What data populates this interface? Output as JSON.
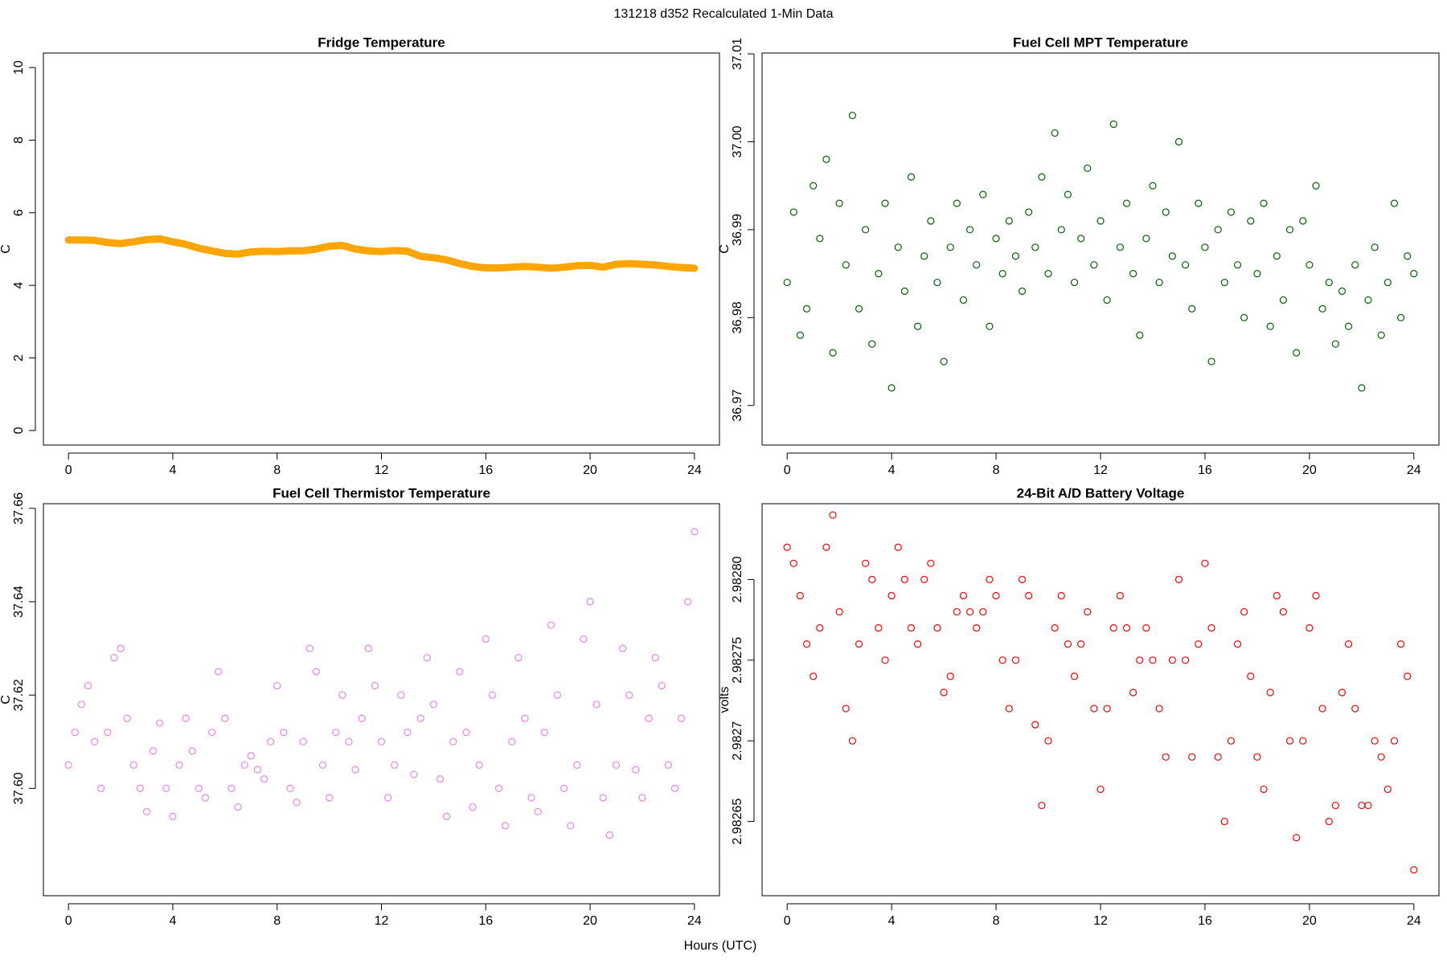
{
  "title": "131218   d352   Recalculated 1-Min Data",
  "xlabel": "Hours (UTC)",
  "chart_data": [
    {
      "type": "line",
      "title": "Fridge Temperature",
      "ylabel": "C",
      "color": "#ffa500",
      "x": [
        0,
        0.5,
        1,
        1.5,
        2,
        2.5,
        3,
        3.5,
        4,
        4.5,
        5,
        5.5,
        6,
        6.5,
        7,
        7.5,
        8,
        8.5,
        9,
        9.5,
        10,
        10.5,
        11,
        11.5,
        12,
        12.5,
        13,
        13.5,
        14,
        14.5,
        15,
        15.5,
        16,
        16.5,
        17,
        17.5,
        18,
        18.5,
        19,
        19.5,
        20,
        20.5,
        21,
        21.5,
        22,
        22.5,
        23,
        23.5,
        24
      ],
      "values": [
        5.25,
        5.25,
        5.24,
        5.18,
        5.15,
        5.2,
        5.26,
        5.28,
        5.2,
        5.13,
        5.02,
        4.95,
        4.88,
        4.86,
        4.92,
        4.94,
        4.93,
        4.95,
        4.95,
        5.0,
        5.08,
        5.1,
        5.0,
        4.95,
        4.93,
        4.96,
        4.94,
        4.8,
        4.76,
        4.7,
        4.6,
        4.52,
        4.48,
        4.48,
        4.5,
        4.52,
        4.5,
        4.47,
        4.5,
        4.54,
        4.55,
        4.5,
        4.58,
        4.6,
        4.58,
        4.56,
        4.52,
        4.49,
        4.47
      ],
      "xlim": [
        -0.96,
        24.96
      ],
      "xticks": [
        0,
        4,
        8,
        12,
        16,
        20,
        24
      ],
      "ylim": [
        -0.4,
        10.4
      ],
      "yticks": [
        0,
        2,
        4,
        6,
        8,
        10
      ]
    },
    {
      "type": "scatter",
      "title": "Fuel Cell MPT Temperature",
      "ylabel": "C",
      "color": "#006400",
      "x": [
        0,
        0.25,
        0.5,
        0.75,
        1,
        1.25,
        1.5,
        1.75,
        2,
        2.25,
        2.5,
        2.75,
        3,
        3.25,
        3.5,
        3.75,
        4,
        4.25,
        4.5,
        4.75,
        5,
        5.25,
        5.5,
        5.75,
        6,
        6.25,
        6.5,
        6.75,
        7,
        7.25,
        7.5,
        7.75,
        8,
        8.25,
        8.5,
        8.75,
        9,
        9.25,
        9.5,
        9.75,
        10,
        10.25,
        10.5,
        10.75,
        11,
        11.25,
        11.5,
        11.75,
        12,
        12.25,
        12.5,
        12.75,
        13,
        13.25,
        13.5,
        13.75,
        14,
        14.25,
        14.5,
        14.75,
        15,
        15.25,
        15.5,
        15.75,
        16,
        16.25,
        16.5,
        16.75,
        17,
        17.25,
        17.5,
        17.75,
        18,
        18.25,
        18.5,
        18.75,
        19,
        19.25,
        19.5,
        19.75,
        20,
        20.25,
        20.5,
        20.75,
        21,
        21.25,
        21.5,
        21.75,
        22,
        22.25,
        22.5,
        22.75,
        23,
        23.25,
        23.5,
        23.75,
        24
      ],
      "values": [
        36.984,
        36.992,
        36.978,
        36.981,
        36.995,
        36.989,
        36.998,
        36.976,
        36.993,
        36.986,
        37.003,
        36.981,
        36.99,
        36.977,
        36.985,
        36.993,
        36.972,
        36.988,
        36.983,
        36.996,
        36.979,
        36.987,
        36.991,
        36.984,
        36.975,
        36.988,
        36.993,
        36.982,
        36.99,
        36.986,
        36.994,
        36.979,
        36.989,
        36.985,
        36.991,
        36.987,
        36.983,
        36.992,
        36.988,
        36.996,
        36.985,
        37.001,
        36.99,
        36.994,
        36.984,
        36.989,
        36.997,
        36.986,
        36.991,
        36.982,
        37.002,
        36.988,
        36.993,
        36.985,
        36.978,
        36.989,
        36.995,
        36.984,
        36.992,
        36.987,
        37.0,
        36.986,
        36.981,
        36.993,
        36.988,
        36.975,
        36.99,
        36.984,
        36.992,
        36.986,
        36.98,
        36.991,
        36.985,
        36.993,
        36.979,
        36.987,
        36.982,
        36.99,
        36.976,
        36.991,
        36.986,
        36.995,
        36.981,
        36.984,
        36.977,
        36.983,
        36.979,
        36.986,
        36.972,
        36.982,
        36.988,
        36.978,
        36.984,
        36.993,
        36.98,
        36.987,
        36.985
      ],
      "xlim": [
        -0.96,
        24.96
      ],
      "xticks": [
        0,
        4,
        8,
        12,
        16,
        20,
        24
      ],
      "ylim": [
        36.9655,
        37.0101
      ],
      "yticks": [
        36.97,
        36.98,
        36.99,
        {
          "value": 37,
          "label": "37.00"
        },
        37.01
      ]
    },
    {
      "type": "scatter",
      "title": "Fuel Cell Thermistor Temperature",
      "ylabel": "C",
      "color": "#ee82ee",
      "x": [
        0,
        0.25,
        0.5,
        0.75,
        1,
        1.25,
        1.5,
        1.75,
        2,
        2.25,
        2.5,
        2.75,
        3,
        3.25,
        3.5,
        3.75,
        4,
        4.25,
        4.5,
        4.75,
        5,
        5.25,
        5.5,
        5.75,
        6,
        6.25,
        6.5,
        6.75,
        7,
        7.25,
        7.5,
        7.75,
        8,
        8.25,
        8.5,
        8.75,
        9,
        9.25,
        9.5,
        9.75,
        10,
        10.25,
        10.5,
        10.75,
        11,
        11.25,
        11.5,
        11.75,
        12,
        12.25,
        12.5,
        12.75,
        13,
        13.25,
        13.5,
        13.75,
        14,
        14.25,
        14.5,
        14.75,
        15,
        15.25,
        15.5,
        15.75,
        16,
        16.25,
        16.5,
        16.75,
        17,
        17.25,
        17.5,
        17.75,
        18,
        18.25,
        18.5,
        18.75,
        19,
        19.25,
        19.5,
        19.75,
        20,
        20.25,
        20.5,
        20.75,
        21,
        21.25,
        21.5,
        21.75,
        22,
        22.25,
        22.5,
        22.75,
        23,
        23.25,
        23.5,
        23.75,
        24
      ],
      "values": [
        37.605,
        37.612,
        37.618,
        37.622,
        37.61,
        37.6,
        37.612,
        37.628,
        37.63,
        37.615,
        37.605,
        37.6,
        37.595,
        37.608,
        37.614,
        37.6,
        37.594,
        37.605,
        37.615,
        37.608,
        37.6,
        37.598,
        37.612,
        37.625,
        37.615,
        37.6,
        37.596,
        37.605,
        37.607,
        37.604,
        37.602,
        37.61,
        37.622,
        37.612,
        37.6,
        37.597,
        37.61,
        37.63,
        37.625,
        37.605,
        37.598,
        37.612,
        37.62,
        37.61,
        37.604,
        37.615,
        37.63,
        37.622,
        37.61,
        37.598,
        37.605,
        37.62,
        37.612,
        37.603,
        37.615,
        37.628,
        37.618,
        37.602,
        37.594,
        37.61,
        37.625,
        37.612,
        37.596,
        37.605,
        37.632,
        37.62,
        37.6,
        37.592,
        37.61,
        37.628,
        37.615,
        37.598,
        37.595,
        37.612,
        37.635,
        37.62,
        37.6,
        37.592,
        37.605,
        37.632,
        37.64,
        37.618,
        37.598,
        37.59,
        37.605,
        37.63,
        37.62,
        37.604,
        37.598,
        37.615,
        37.628,
        37.622,
        37.605,
        37.6,
        37.615,
        37.64,
        37.655
      ],
      "xlim": [
        -0.96,
        24.96
      ],
      "xticks": [
        0,
        4,
        8,
        12,
        16,
        20,
        24
      ],
      "ylim": [
        37.577,
        37.661
      ],
      "yticks": [
        {
          "value": 37.6,
          "label": "37.60"
        },
        37.62,
        37.64,
        37.66
      ]
    },
    {
      "type": "scatter",
      "title": "24-Bit A/D Battery Voltage",
      "ylabel": "volts",
      "color": "#ff0000",
      "x": [
        0,
        0.25,
        0.5,
        0.75,
        1,
        1.25,
        1.5,
        1.75,
        2,
        2.25,
        2.5,
        2.75,
        3,
        3.25,
        3.5,
        3.75,
        4,
        4.25,
        4.5,
        4.75,
        5,
        5.25,
        5.5,
        5.75,
        6,
        6.25,
        6.5,
        6.75,
        7,
        7.25,
        7.5,
        7.75,
        8,
        8.25,
        8.5,
        8.75,
        9,
        9.25,
        9.5,
        9.75,
        10,
        10.25,
        10.5,
        10.75,
        11,
        11.25,
        11.5,
        11.75,
        12,
        12.25,
        12.5,
        12.75,
        13,
        13.25,
        13.5,
        13.75,
        14,
        14.25,
        14.5,
        14.75,
        15,
        15.25,
        15.5,
        15.75,
        16,
        16.25,
        16.5,
        16.75,
        17,
        17.25,
        17.5,
        17.75,
        18,
        18.25,
        18.5,
        18.75,
        19,
        19.25,
        19.5,
        19.75,
        20,
        20.25,
        20.5,
        20.75,
        21,
        21.25,
        21.5,
        21.75,
        22,
        22.25,
        22.5,
        22.75,
        23,
        23.25,
        23.5,
        23.75,
        24
      ],
      "values": [
        2.98282,
        2.98281,
        2.98279,
        2.98276,
        2.98274,
        2.98277,
        2.98282,
        2.98284,
        2.98278,
        2.98272,
        2.9827,
        2.98276,
        2.98281,
        2.9828,
        2.98277,
        2.98275,
        2.98279,
        2.98282,
        2.9828,
        2.98277,
        2.98276,
        2.9828,
        2.98281,
        2.98277,
        2.98273,
        2.98274,
        2.98278,
        2.98279,
        2.98278,
        2.98277,
        2.98278,
        2.9828,
        2.98279,
        2.98275,
        2.98272,
        2.98275,
        2.9828,
        2.98279,
        2.98271,
        2.98266,
        2.9827,
        2.98277,
        2.98279,
        2.98276,
        2.98274,
        2.98276,
        2.98278,
        2.98272,
        2.98267,
        2.98272,
        2.98277,
        2.98279,
        2.98277,
        2.98273,
        2.98275,
        2.98277,
        2.98275,
        2.98272,
        2.98269,
        2.98275,
        2.9828,
        2.98275,
        2.98269,
        2.98276,
        2.98281,
        2.98277,
        2.98269,
        2.98265,
        2.9827,
        2.98276,
        2.98278,
        2.98274,
        2.98269,
        2.98267,
        2.98273,
        2.98279,
        2.98278,
        2.9827,
        2.98264,
        2.9827,
        2.98277,
        2.98279,
        2.98272,
        2.98265,
        2.98266,
        2.98273,
        2.98276,
        2.98272,
        2.98266,
        2.98266,
        2.9827,
        2.98269,
        2.98267,
        2.9827,
        2.98276,
        2.98274,
        2.98262
      ],
      "xlim": [
        -0.96,
        24.96
      ],
      "xticks": [
        0,
        4,
        8,
        12,
        16,
        20,
        24
      ],
      "ylim": [
        2.982604,
        2.982847
      ],
      "yticks": [
        2.98265,
        2.9827,
        2.98275,
        {
          "value": 2.9828,
          "label": "2.98280"
        }
      ]
    }
  ]
}
